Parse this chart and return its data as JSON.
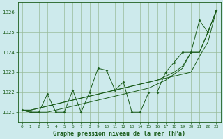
{
  "title": "Graphe pression niveau de la mer (hPa)",
  "bg_color": "#cdeaec",
  "grid_color": "#99bb99",
  "line_color": "#1a5c1a",
  "xlim": [
    -0.5,
    23.5
  ],
  "ylim": [
    1020.5,
    1026.5
  ],
  "yticks": [
    1021,
    1022,
    1023,
    1024,
    1025,
    1026
  ],
  "xticks": [
    0,
    1,
    2,
    3,
    4,
    5,
    6,
    7,
    8,
    9,
    10,
    11,
    12,
    13,
    14,
    15,
    16,
    17,
    18,
    19,
    20,
    21,
    22,
    23
  ],
  "series_zigzag": [
    1021.1,
    1021.0,
    1021.0,
    1021.9,
    1021.0,
    1021.0,
    1022.1,
    1021.0,
    1022.0,
    1023.2,
    1023.1,
    1022.1,
    1022.5,
    1021.0,
    1021.0,
    1022.0,
    1022.0,
    1023.0,
    1023.5,
    1024.0,
    1024.0,
    1025.6,
    1025.0,
    1026.1
  ],
  "series_line1": [
    1021.1,
    1021.1,
    1021.2,
    1021.3,
    1021.4,
    1021.5,
    1021.6,
    1021.7,
    1021.8,
    1021.9,
    1022.0,
    1022.1,
    1022.2,
    1022.3,
    1022.4,
    1022.5,
    1022.6,
    1022.7,
    1022.8,
    1022.9,
    1023.0,
    1023.8,
    1024.5,
    1026.1
  ],
  "series_line2": [
    1021.1,
    1021.1,
    1021.2,
    1021.3,
    1021.4,
    1021.5,
    1021.6,
    1021.7,
    1021.8,
    1021.9,
    1022.0,
    1022.1,
    1022.2,
    1022.3,
    1022.4,
    1022.5,
    1022.6,
    1022.8,
    1023.0,
    1023.3,
    1024.0,
    1024.0,
    1025.0,
    1026.1
  ],
  "series_line3": [
    1021.1,
    1021.0,
    1021.0,
    1021.0,
    1021.1,
    1021.2,
    1021.3,
    1021.4,
    1021.5,
    1021.6,
    1021.7,
    1021.8,
    1021.9,
    1022.0,
    1022.1,
    1022.2,
    1022.4,
    1022.6,
    1022.9,
    1023.2,
    1024.0,
    1024.0,
    1025.0,
    1026.1
  ]
}
